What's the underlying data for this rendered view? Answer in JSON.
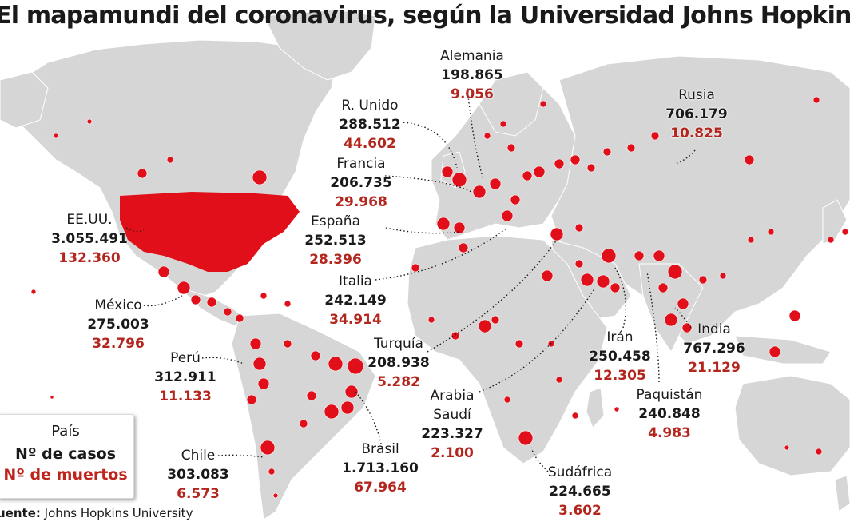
{
  "title": "El mapamundi del coronavirus, según la Universidad Johns Hopkins",
  "colors": {
    "land": "#d6d6d6",
    "ocean": "#ffffff",
    "dot": "#e10f1a",
    "deaths_text": "#b3261e"
  },
  "legend": {
    "country": "País",
    "cases": "Nº de casos",
    "deaths": "Nº de muertos"
  },
  "source": {
    "label": "uente:",
    "text": "Johns Hopkins University"
  },
  "countries": [
    {
      "id": "usa",
      "name": "EE.UU.",
      "cases": "3.055.491",
      "deaths": "132.360"
    },
    {
      "id": "mexico",
      "name": "México",
      "cases": "275.003",
      "deaths": "32.796"
    },
    {
      "id": "peru",
      "name": "Perú",
      "cases": "312.911",
      "deaths": "11.133"
    },
    {
      "id": "chile",
      "name": "Chile",
      "cases": "303.083",
      "deaths": "6.573"
    },
    {
      "id": "brasil",
      "name": "Brasil",
      "cases": "1.713.160",
      "deaths": "67.964"
    },
    {
      "id": "reino-unido",
      "name": "R. Unido",
      "cases": "288.512",
      "deaths": "44.602"
    },
    {
      "id": "francia",
      "name": "Francia",
      "cases": "206.735",
      "deaths": "29.968"
    },
    {
      "id": "espana",
      "name": "España",
      "cases": "252.513",
      "deaths": "28.396"
    },
    {
      "id": "italia",
      "name": "Italia",
      "cases": "242.149",
      "deaths": "34.914"
    },
    {
      "id": "alemania",
      "name": "Alemania",
      "cases": "198.865",
      "deaths": "9.056"
    },
    {
      "id": "turquia",
      "name": "Turquía",
      "cases": "208.938",
      "deaths": "5.282"
    },
    {
      "id": "arabia-saudi",
      "name": "Arabia\nSaudí",
      "cases": "223.327",
      "deaths": "2.100"
    },
    {
      "id": "iran",
      "name": "Irán",
      "cases": "250.458",
      "deaths": "12.305"
    },
    {
      "id": "pakistan",
      "name": "Paquistán",
      "cases": "240.848",
      "deaths": "4.983"
    },
    {
      "id": "india",
      "name": "India",
      "cases": "767.296",
      "deaths": "21.129"
    },
    {
      "id": "rusia",
      "name": "Rusia",
      "cases": "706.179",
      "deaths": "10.825"
    },
    {
      "id": "sudafrica",
      "name": "Sudáfrica",
      "cases": "224.665",
      "deaths": "3.602"
    }
  ]
}
